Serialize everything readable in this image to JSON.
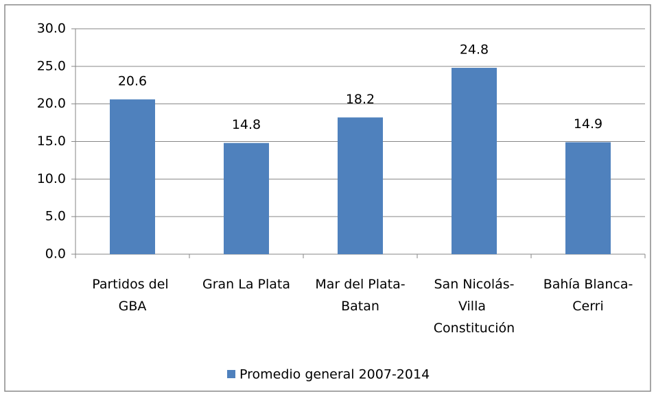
{
  "chart_data": {
    "type": "bar",
    "categories": [
      "Partidos del GBA",
      "Gran La Plata",
      "Mar del Plata-Batan",
      "San Nicolás-Villa Constitución",
      "Bahía Blanca-Cerri"
    ],
    "series": [
      {
        "name": "Promedio general 2007-2014",
        "color": "#4f81bd",
        "values": [
          20.6,
          14.8,
          18.2,
          24.8,
          14.9
        ]
      }
    ],
    "ylim": [
      0,
      30
    ],
    "yticks": [
      {
        "value": 0,
        "label": "0.0"
      },
      {
        "value": 5,
        "label": "5.0"
      },
      {
        "value": 10,
        "label": "10.0"
      },
      {
        "value": 15,
        "label": "15.0"
      },
      {
        "value": 20,
        "label": "20.0"
      },
      {
        "value": 25,
        "label": "25.0"
      },
      {
        "value": 30,
        "label": "30.0"
      }
    ],
    "grid": true,
    "legend": "bottom"
  }
}
